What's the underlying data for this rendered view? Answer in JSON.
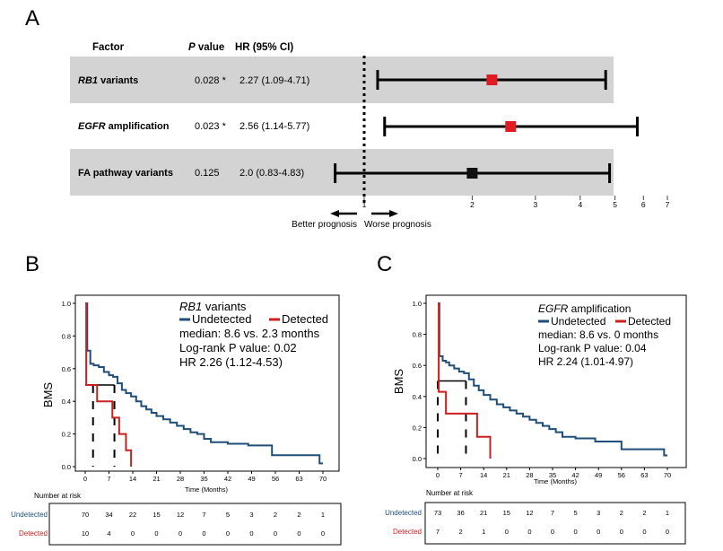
{
  "panel_letters": {
    "a": "A",
    "b": "B",
    "c": "C"
  },
  "colors": {
    "band": "#d3d3d3",
    "sig_marker": "#e01b24",
    "ns_marker": "#111111",
    "undetected": "#1f4e79",
    "detected": "#cc1f1f",
    "median_line": "#000000"
  },
  "forest": {
    "headers": {
      "factor": "Factor",
      "p_italic": "P",
      "p_rest": " value",
      "hr": "HR (95% CI)"
    },
    "rows": [
      {
        "factor_italic": "RB1",
        "factor_rest": " variants",
        "p": "0.028 *",
        "hr_text": "2.27 (1.09-4.71)",
        "banded": true,
        "significant": true
      },
      {
        "factor_italic": "EGFR",
        "factor_rest": " amplification",
        "p": "0.023 *",
        "hr_text": "2.56 (1.14-5.77)",
        "banded": false,
        "significant": true
      },
      {
        "factor_italic": "",
        "factor_rest": "FA pathway variants",
        "p": "0.125",
        "hr_text": "2.0 (0.83-4.83)",
        "banded": true,
        "significant": false
      }
    ],
    "axis_ticks": [
      "1",
      "2",
      "3",
      "4",
      "5",
      "6",
      "7"
    ],
    "better_label": "Better prognosis",
    "worse_label": "Worse prognosis"
  },
  "km_b": {
    "ylabel": "BMS",
    "xlabel": "Time (Months)",
    "y_ticks": [
      "0.0",
      "0.2",
      "0.4",
      "0.6",
      "0.8",
      "1.0"
    ],
    "x_ticks": [
      "0",
      "7",
      "14",
      "21",
      "28",
      "35",
      "42",
      "49",
      "56",
      "63",
      "70"
    ],
    "legend": {
      "title_italic": "RB1",
      "title_rest": " variants",
      "undetected": "Undetected",
      "detected": "Detected",
      "stats": [
        "median: 8.6 vs. 2.3 months",
        "Log-rank P value: 0.02",
        "HR 2.26 (1.12-4.53)"
      ]
    },
    "risk_title": "Number at risk",
    "risk_groups": [
      {
        "label": "Undetected",
        "values": [
          "70",
          "34",
          "22",
          "15",
          "12",
          "7",
          "5",
          "3",
          "2",
          "2",
          "1"
        ]
      },
      {
        "label": "Detected",
        "values": [
          "10",
          "4",
          "0",
          "0",
          "0",
          "0",
          "0",
          "0",
          "0",
          "0",
          "0"
        ]
      }
    ]
  },
  "km_c": {
    "ylabel": "BMS",
    "xlabel": "Time (Months)",
    "y_ticks": [
      "0.0",
      "0.2",
      "0.4",
      "0.6",
      "0.8",
      "1.0"
    ],
    "x_ticks": [
      "0",
      "7",
      "14",
      "21",
      "28",
      "35",
      "42",
      "49",
      "56",
      "63",
      "70"
    ],
    "legend": {
      "title_italic": "EGFR",
      "title_rest": " amplification",
      "undetected": "Undetected",
      "detected": "Detected",
      "stats": [
        "median: 8.6 vs. 0 months",
        "Log-rank P value: 0.04",
        "HR 2.24 (1.01-4.97)"
      ]
    },
    "risk_title": "Number at risk",
    "risk_groups": [
      {
        "label": "Undetected",
        "values": [
          "73",
          "36",
          "21",
          "15",
          "12",
          "7",
          "5",
          "3",
          "2",
          "2",
          "1"
        ]
      },
      {
        "label": "Detected",
        "values": [
          "7",
          "2",
          "1",
          "0",
          "0",
          "0",
          "0",
          "0",
          "0",
          "0",
          "0"
        ]
      }
    ]
  },
  "chart_data": [
    {
      "type": "forest",
      "xscale": "log",
      "reference_line": 1,
      "xticks": [
        1,
        2,
        3,
        4,
        5,
        6,
        7
      ],
      "rows": [
        {
          "name": "RB1 variants",
          "hr": 2.27,
          "lo": 1.09,
          "hi": 4.71,
          "p": 0.028
        },
        {
          "name": "EGFR amplification",
          "hr": 2.56,
          "lo": 1.14,
          "hi": 5.77,
          "p": 0.023
        },
        {
          "name": "FA pathway variants",
          "hr": 2.0,
          "lo": 0.83,
          "hi": 4.83,
          "p": 0.125
        }
      ]
    },
    {
      "type": "line",
      "subtype": "kaplan-meier",
      "xlabel": "Time (Months)",
      "ylabel": "BMS",
      "xlim": [
        0,
        70
      ],
      "ylim": [
        0,
        1
      ],
      "series": [
        {
          "name": "Undetected",
          "step_x": [
            0,
            0.6,
            1.5,
            2.5,
            4,
            5.5,
            7,
            8.2,
            9.5,
            10.8,
            12,
            13.5,
            15,
            16.5,
            18,
            19.5,
            21,
            23,
            25,
            27,
            29,
            31,
            33,
            35,
            37,
            42,
            48,
            55,
            69
          ],
          "step_y": [
            1.0,
            0.71,
            0.63,
            0.62,
            0.61,
            0.58,
            0.56,
            0.55,
            0.51,
            0.47,
            0.45,
            0.43,
            0.4,
            0.37,
            0.35,
            0.33,
            0.31,
            0.29,
            0.27,
            0.25,
            0.23,
            0.21,
            0.2,
            0.17,
            0.15,
            0.14,
            0.13,
            0.07,
            0.02
          ],
          "end_x": 70
        },
        {
          "name": "Detected",
          "step_x": [
            0,
            0.3,
            3.5,
            8,
            10,
            12,
            13.5
          ],
          "step_y": [
            1.0,
            0.5,
            0.4,
            0.3,
            0.2,
            0.1,
            0.0
          ],
          "end_x": 13.5
        }
      ],
      "medians": [
        2.3,
        8.6
      ]
    },
    {
      "type": "line",
      "subtype": "kaplan-meier",
      "xlabel": "Time (Months)",
      "ylabel": "BMS",
      "xlim": [
        0,
        70
      ],
      "ylim": [
        0,
        1
      ],
      "series": [
        {
          "name": "Undetected",
          "step_x": [
            0,
            0.5,
            1.5,
            2.5,
            3.5,
            5,
            6.5,
            8,
            9.5,
            11,
            12.5,
            14,
            16,
            18,
            20,
            22,
            24,
            26,
            28,
            30,
            32,
            34,
            36,
            38,
            42,
            48,
            56,
            69
          ],
          "step_y": [
            1.0,
            0.66,
            0.63,
            0.62,
            0.6,
            0.58,
            0.56,
            0.55,
            0.51,
            0.47,
            0.44,
            0.41,
            0.38,
            0.35,
            0.33,
            0.31,
            0.29,
            0.27,
            0.25,
            0.23,
            0.21,
            0.19,
            0.17,
            0.14,
            0.13,
            0.11,
            0.06,
            0.02
          ],
          "end_x": 70
        },
        {
          "name": "Detected",
          "step_x": [
            0,
            0.3,
            2.5,
            12,
            16
          ],
          "step_y": [
            1.0,
            0.43,
            0.29,
            0.14,
            0.0
          ],
          "end_x": 16
        }
      ],
      "medians": [
        0,
        8.6
      ]
    }
  ]
}
